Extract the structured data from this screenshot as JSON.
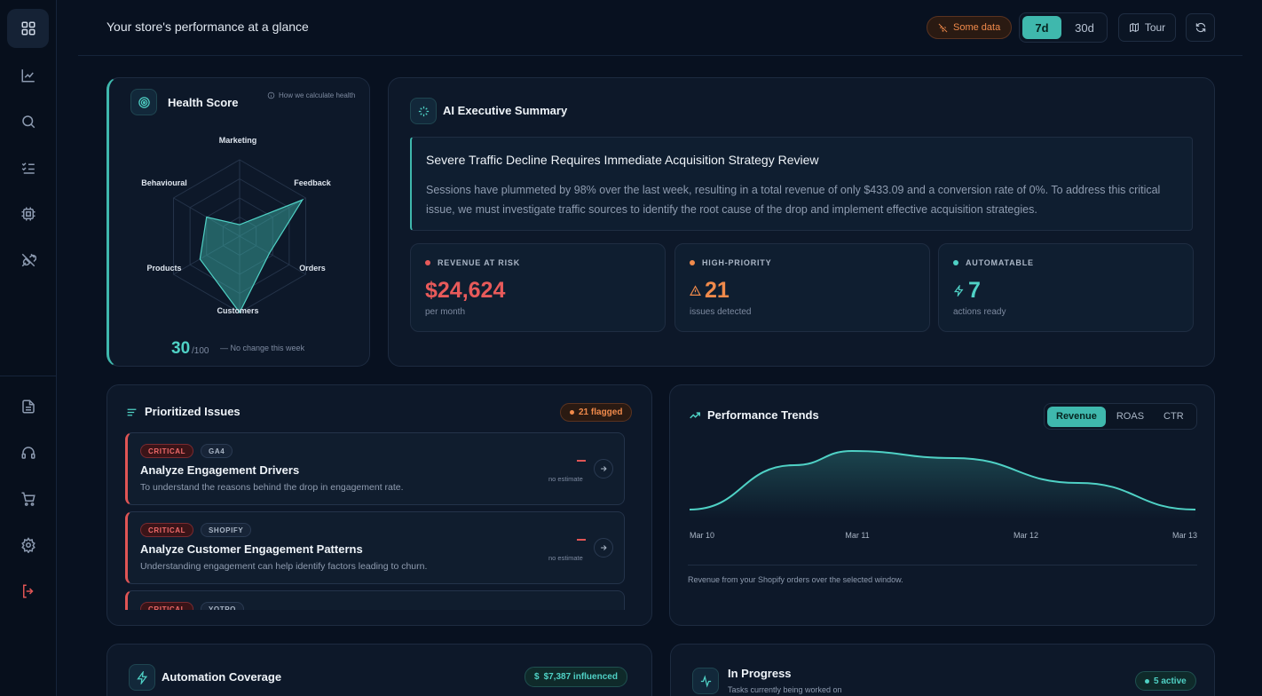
{
  "header": {
    "title": "Your store's performance at a glance",
    "data_status": "Some data",
    "range_options": [
      "7d",
      "30d"
    ],
    "selected_range": "7d",
    "tour_label": "Tour"
  },
  "sidebar": {
    "items": [
      {
        "name": "dashboard",
        "icon": "grid-icon",
        "active": true
      },
      {
        "name": "analytics",
        "icon": "chart-line-icon"
      },
      {
        "name": "search",
        "icon": "search-icon"
      },
      {
        "name": "tasks",
        "icon": "checklist-icon"
      },
      {
        "name": "automation",
        "icon": "chip-icon"
      },
      {
        "name": "integrations",
        "icon": "plug-icon"
      }
    ],
    "bottom_items": [
      {
        "name": "reports",
        "icon": "document-icon"
      },
      {
        "name": "support",
        "icon": "headset-icon"
      },
      {
        "name": "store",
        "icon": "cart-icon"
      },
      {
        "name": "settings",
        "icon": "gear-icon"
      },
      {
        "name": "logout",
        "icon": "logout-icon"
      }
    ]
  },
  "health": {
    "title": "Health Score",
    "how_link": "How we calculate health",
    "axes": [
      "Marketing",
      "Feedback",
      "Orders",
      "Customers",
      "Products",
      "Behavioural"
    ],
    "values": [
      0.15,
      0.95,
      0.45,
      1.0,
      0.6,
      0.5
    ],
    "score": "30",
    "score_max": "/100",
    "change": "No change this week"
  },
  "ai_summary": {
    "title": "AI Executive Summary",
    "headline": "Severe Traffic Decline Requires Immediate Acquisition Strategy Review",
    "body": "Sessions have plummeted by 98% over the last week, resulting in a total revenue of only $433.09 and a conversion rate of 0%. To address this critical issue, we must investigate traffic sources to identify the root cause of the drop and implement effective acquisition strategies.",
    "metrics": [
      {
        "label": "REVENUE AT RISK",
        "value": "$24,624",
        "sub": "per month",
        "color": "#e85a5a"
      },
      {
        "label": "HIGH-PRIORITY",
        "value": "21",
        "sub": "issues detected",
        "color": "#f08a4b"
      },
      {
        "label": "AUTOMATABLE",
        "value": "7",
        "sub": "actions ready",
        "color": "#4fd1c5"
      }
    ]
  },
  "issues": {
    "title": "Prioritized Issues",
    "flag_count": "21 flagged",
    "items": [
      {
        "severity": "CRITICAL",
        "source": "GA4",
        "title": "Analyze Engagement Drivers",
        "desc": "To understand the reasons behind the drop in engagement rate.",
        "estimate": "no estimate"
      },
      {
        "severity": "CRITICAL",
        "source": "SHOPIFY",
        "title": "Analyze Customer Engagement Patterns",
        "desc": "Understanding engagement can help identify factors leading to churn.",
        "estimate": "no estimate"
      },
      {
        "severity": "CRITICAL",
        "source": "YOTPO",
        "title": "",
        "desc": "",
        "estimate": ""
      }
    ]
  },
  "trends": {
    "title": "Performance Trends",
    "tabs": [
      "Revenue",
      "ROAS",
      "CTR"
    ],
    "active_tab": "Revenue",
    "footer": "Revenue from your Shopify orders over the selected window."
  },
  "chart_data": {
    "type": "area",
    "x": [
      "Mar 10",
      "Mar 11",
      "Mar 12",
      "Mar 13"
    ],
    "series": [
      {
        "values": [
          0.15,
          1.0,
          0.6,
          0.15
        ]
      }
    ]
  },
  "automation": {
    "title": "Automation Coverage",
    "influenced": "$7,387 influenced"
  },
  "in_progress": {
    "title": "In Progress",
    "subtitle": "Tasks currently being worked on",
    "active": "5 active"
  },
  "colors": {
    "accent": "#3fb8ad",
    "critical": "#e05555",
    "warning": "#f08a4b",
    "background": "#081120"
  }
}
